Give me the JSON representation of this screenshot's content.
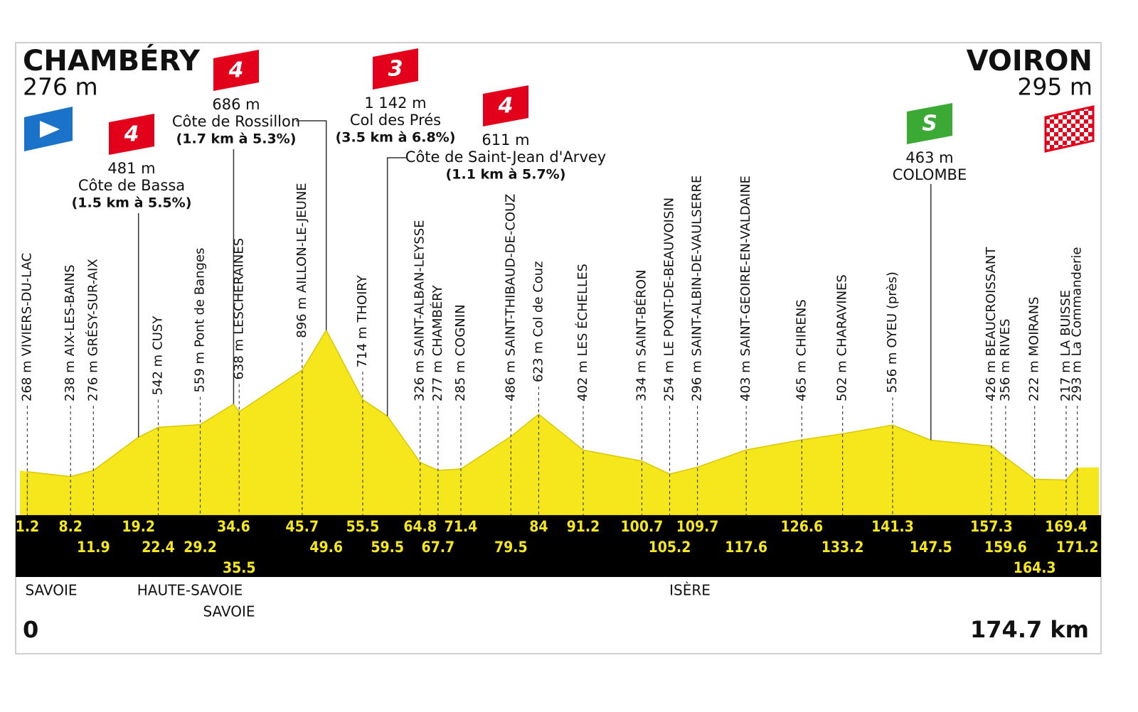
{
  "chart_data": {
    "type": "profile",
    "start": {
      "name": "CHAMBÉRY",
      "elevation": 276,
      "elevation_label": "276 m"
    },
    "finish": {
      "name": "VOIRON",
      "elevation": 295,
      "elevation_label": "295 m"
    },
    "xlim": [
      0,
      174.7
    ],
    "xticks": [
      0,
      {
        "value": 174.7,
        "label": "174.7 km"
      }
    ],
    "x": [
      1.2,
      8.2,
      11.9,
      19.2,
      22.4,
      29.2,
      34.6,
      35.5,
      45.7,
      49.6,
      55.5,
      59.5,
      64.8,
      67.7,
      71.4,
      79.5,
      84,
      91.2,
      100.7,
      105.2,
      109.7,
      117.6,
      126.6,
      133.2,
      141.3,
      147.5,
      157.3,
      159.6,
      164.3,
      169.4,
      171.2
    ],
    "values": [
      268,
      238,
      276,
      481,
      542,
      559,
      686,
      638,
      896,
      1142,
      714,
      611,
      326,
      277,
      285,
      486,
      623,
      402,
      334,
      254,
      296,
      403,
      465,
      502,
      556,
      463,
      426,
      356,
      222,
      217,
      293
    ],
    "value_labels": [
      "268 m",
      "238 m",
      "276 m",
      "481 m",
      "542 m",
      "559 m",
      "686 m",
      "638 m",
      "896 m",
      "1 142 m",
      "714 m",
      "611 m",
      "326 m",
      "277 m",
      "285 m",
      "486 m",
      "623 m",
      "402 m",
      "334 m",
      "254 m",
      "296 m",
      "403 m",
      "465 m",
      "502 m",
      "556 m",
      "463 m",
      "426 m",
      "356 m",
      "222 m",
      "217 m",
      "293 m"
    ],
    "names": [
      "VIVIERS-DU-LAC",
      "AIX-LES-BAINS",
      "GRÉSY-SUR-AIX",
      "Côte de Bassa",
      "CUSY",
      "Pont de Banges",
      "Côte de Rossillon",
      "LESCHERAINES",
      "AILLON-LE-JEUNE",
      "Col des Prés",
      "THOIRY",
      "Côte de Saint-Jean d'Arvey",
      "SAINT-ALBAN-LEYSSE",
      "CHAMBÉRY",
      "COGNIN",
      "SAINT-THIBAUD-DE-COUZ",
      "Col de Couz",
      "LES ÉCHELLES",
      "SAINT-BÉRON",
      "LE PONT-DE-BEAUVOISIN",
      "SAINT-ALBIN-DE-VAULSERRE",
      "SAINT-GEOIRE-EN-VALDAINE",
      "CHIRENS",
      "CHARAVINES",
      "OYEU (près)",
      "COLOMBE",
      "BEAUCROISSANT",
      "RIVES",
      "MOIRANS",
      "LA BUISSE",
      "La Commanderie"
    ],
    "climb_category": [
      null,
      null,
      null,
      "4",
      null,
      null,
      "4",
      null,
      null,
      "3",
      null,
      "4",
      null,
      null,
      null,
      null,
      null,
      null,
      null,
      null,
      null,
      null,
      null,
      null,
      null,
      "S",
      null,
      null,
      null,
      null,
      null
    ],
    "climb_detail": [
      null,
      null,
      null,
      "(1.5 km à 5.5%)",
      null,
      null,
      "(1.7 km à 5.3%)",
      null,
      null,
      "(3.5 km à 6.8%)",
      null,
      "(1.1 km à 5.7%)",
      null,
      null,
      null,
      null,
      null,
      null,
      null,
      null,
      null,
      null,
      null,
      null,
      null,
      null,
      null,
      null,
      null,
      null,
      null
    ],
    "regions": [
      "SAVOIE",
      "HAUTE-SAVOIE",
      "SAVOIE",
      "ISÈRE"
    ],
    "fill_color": "#f5e71c",
    "band_color": "#000000",
    "km_color": "#f5e71c"
  }
}
